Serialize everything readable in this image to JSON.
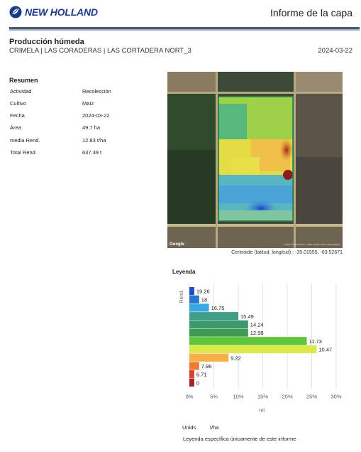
{
  "header": {
    "brand": "NEW HOLLAND",
    "report_title": "Informe de la capa",
    "brand_color": "#1b3a8a",
    "logo_icon": "leaf-logo-icon"
  },
  "layer": {
    "title": "Producción húmeda",
    "field": "CRIMELA | LAS CORADERAS | LAS CORTADERA NORT_3",
    "date": "2024-03-22"
  },
  "summary": {
    "title": "Resumen",
    "rows": [
      {
        "label": "Actividad",
        "value": "Recolección"
      },
      {
        "label": "Cultivo",
        "value": "Maíz"
      },
      {
        "label": "Fecha",
        "value": "2024-03-22"
      },
      {
        "label": "Área",
        "value": "49.7 ha"
      },
      {
        "label": "media Rend.",
        "value": "12.83 t/ha"
      },
      {
        "label": "Total Rend.",
        "value": "637.39 t"
      }
    ]
  },
  "map": {
    "google": "Google",
    "attribution": "Imagery ©2024 Airbus, CNES / Airbus, Maxar Technologies",
    "centroid": "Centroide (latitud, longitud) : -35.01555, -63.52671"
  },
  "legend": {
    "title": "Leyenda",
    "units_label": "Unids",
    "units_value": "t/ha",
    "note": "Leyenda específica únicamente de este informe"
  },
  "chart_data": {
    "type": "bar",
    "orientation": "horizontal",
    "ylabel": "Rend.",
    "xlabel": "rel.",
    "xlim": [
      0,
      30
    ],
    "xticks": [
      "0%",
      "5%",
      "10%",
      "15%",
      "20%",
      "25%",
      "30%"
    ],
    "bins": [
      {
        "label": "19.26",
        "percent": 1,
        "color": "#1f4fc4"
      },
      {
        "label": "18",
        "percent": 2,
        "color": "#2a77c9"
      },
      {
        "label": "16.75",
        "percent": 4,
        "color": "#3aa8e0"
      },
      {
        "label": "15.49",
        "percent": 10,
        "color": "#3f9e86"
      },
      {
        "label": "14.24",
        "percent": 12,
        "color": "#3a9a6e"
      },
      {
        "label": "12.98",
        "percent": 12,
        "color": "#3f9a52"
      },
      {
        "label": "11.73",
        "percent": 24,
        "color": "#5fc63a"
      },
      {
        "label": "10.47",
        "percent": 26,
        "color": "#d9ea4a"
      },
      {
        "label": "9.22",
        "percent": 8,
        "color": "#f5b04a"
      },
      {
        "label": "7.96",
        "percent": 2,
        "color": "#ef7a35"
      },
      {
        "label": "6.71",
        "percent": 1,
        "color": "#d9402d"
      },
      {
        "label": "0",
        "percent": 1,
        "color": "#a42323"
      }
    ]
  }
}
